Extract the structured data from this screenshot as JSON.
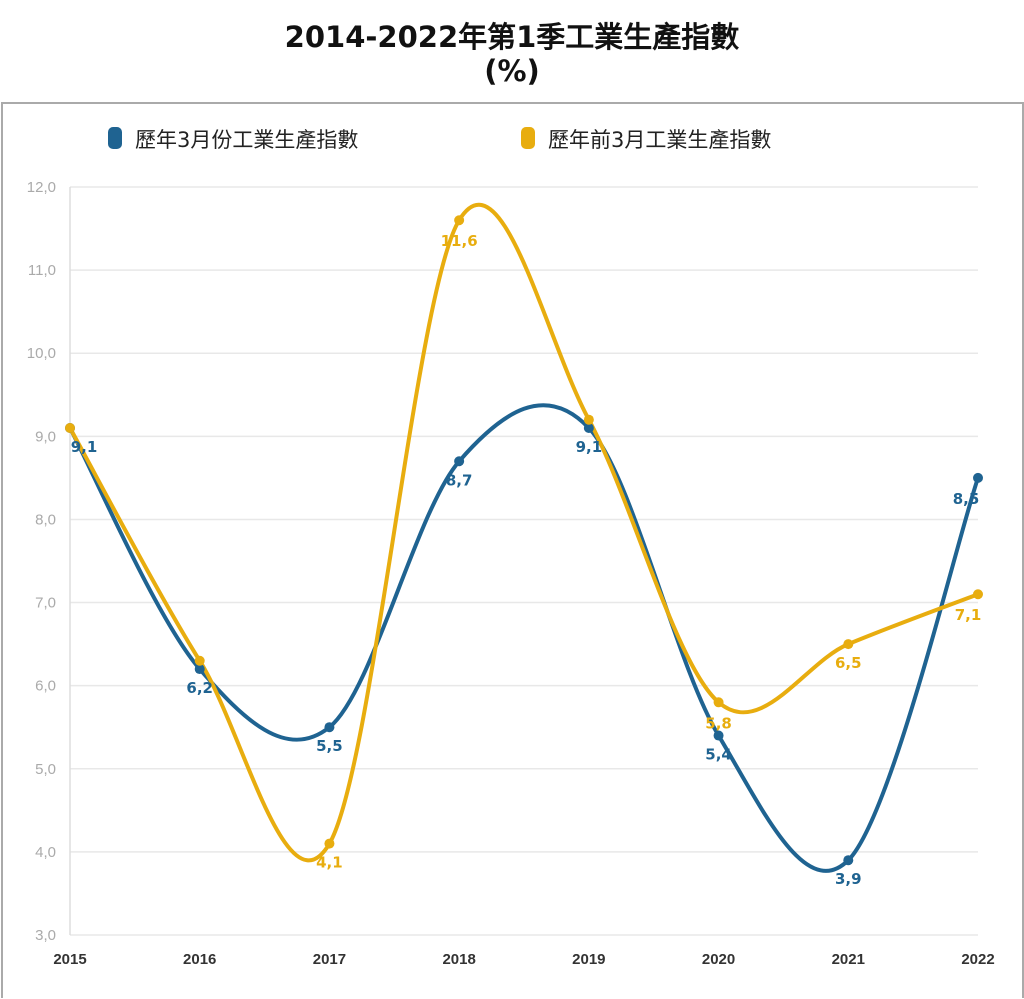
{
  "chart_data": {
    "type": "line",
    "title": "2014-2022年第1季工業生產指數",
    "subtitle": "(%)",
    "x": [
      "2015",
      "2016",
      "2017",
      "2018",
      "2019",
      "2020",
      "2021",
      "2022"
    ],
    "ylim": [
      3.0,
      12.0
    ],
    "yticks": [
      "3,0",
      "4,0",
      "5,0",
      "6,0",
      "7,0",
      "8,0",
      "9,0",
      "10,0",
      "11,0",
      "12,0"
    ],
    "grid": true,
    "legend_position": "top",
    "smooth": true,
    "series": [
      {
        "name": "歷年3月份工業生產指數",
        "color": "#1f6391",
        "values": [
          9.1,
          6.2,
          5.5,
          8.7,
          9.1,
          5.4,
          3.9,
          8.5
        ],
        "labels": [
          "9,1",
          "6,2",
          "5,5",
          "8,7",
          "9,1",
          "5,4",
          "3,9",
          "8,5"
        ]
      },
      {
        "name": "歷年前3月工業生產指數",
        "color": "#e8ad0f",
        "values": [
          9.1,
          6.3,
          4.1,
          11.6,
          9.2,
          5.8,
          6.5,
          7.1
        ],
        "labels": [
          "",
          "",
          "4,1",
          "11,6",
          "",
          "5,8",
          "6,5",
          "7,1"
        ]
      }
    ]
  }
}
